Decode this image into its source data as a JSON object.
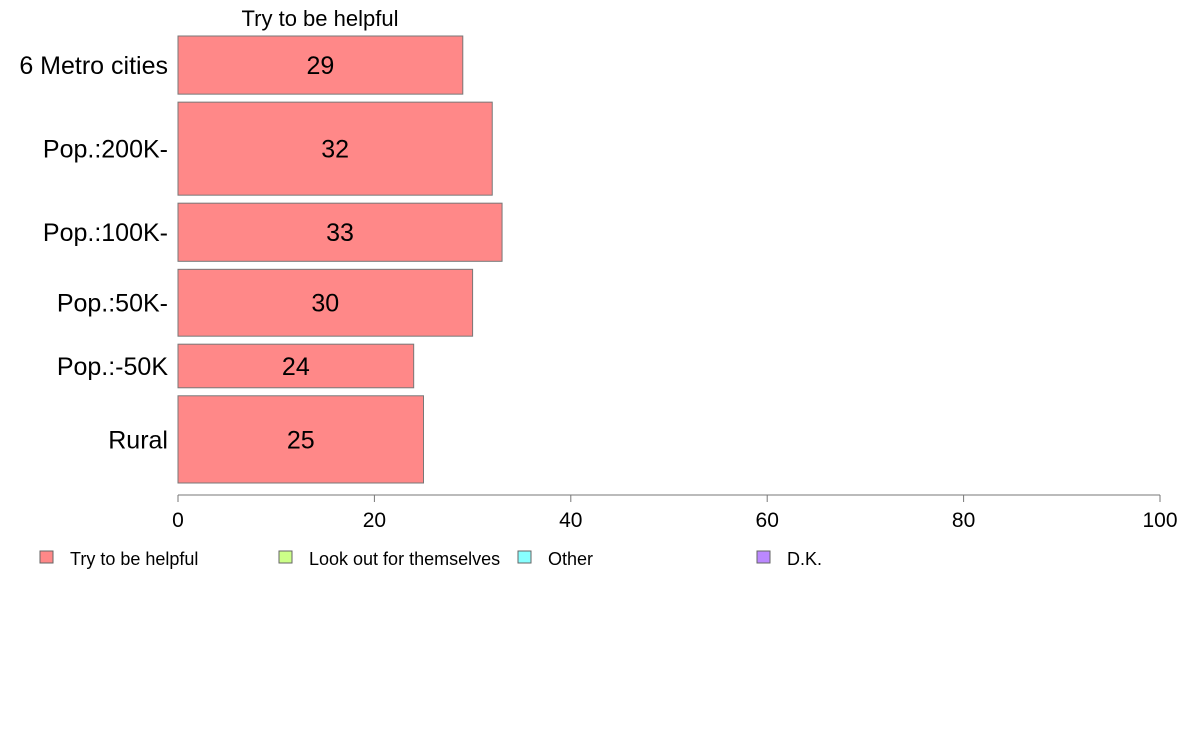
{
  "chart_data": {
    "type": "bar",
    "orientation": "horizontal",
    "title": "Try to be helpful",
    "categories": [
      "6 Metro cities",
      "Pop.:200K-",
      "Pop.:100K-",
      "Pop.:50K-",
      "Pop.:-50K",
      "Rural"
    ],
    "series": [
      {
        "name": "Try to be helpful",
        "color": "#ff8888",
        "values": [
          29,
          32,
          33,
          30,
          24,
          25
        ]
      }
    ],
    "category_weights": [
      1,
      1.6,
      1,
      1.15,
      0.75,
      1.5
    ],
    "xlim": [
      0,
      100
    ],
    "xticks": [
      0,
      20,
      40,
      60,
      80,
      100
    ],
    "grid": false,
    "legend_position": "bottom",
    "legend": [
      {
        "label": "Try to be helpful",
        "color": "#ff8888"
      },
      {
        "label": "Look out for themselves",
        "color": "#ccff88"
      },
      {
        "label": "Other",
        "color": "#88ffff"
      },
      {
        "label": "D.K.",
        "color": "#bb88ff"
      }
    ]
  }
}
